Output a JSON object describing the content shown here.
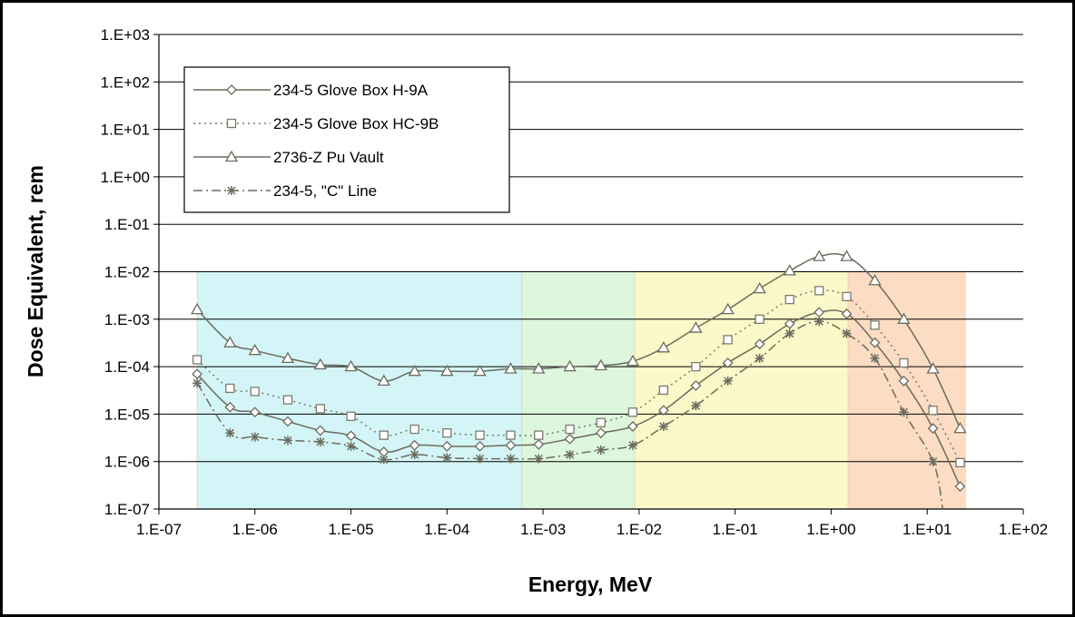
{
  "chart_data": {
    "type": "line",
    "x_scale": "log",
    "y_scale": "log",
    "xlabel": "Energy, MeV",
    "ylabel": "Dose Equivalent, rem",
    "xlim": [
      1e-07,
      100
    ],
    "ylim": [
      1e-07,
      1000
    ],
    "x_tick_labels": [
      "1.E-07",
      "1.E-06",
      "1.E-05",
      "1.E-04",
      "1.E-03",
      "1.E-02",
      "1.E-01",
      "1.E+00",
      "1.E+01",
      "1.E+02"
    ],
    "y_tick_labels": [
      "1.E-07",
      "1.E-06",
      "1.E-05",
      "1.E-04",
      "1.E-03",
      "1.E-02",
      "1.E-01",
      "1.E+00",
      "1.E+01",
      "1.E+02",
      "1.E+03"
    ],
    "grid": "horizontal",
    "legend_position": "top-left",
    "shaded_regions": [
      {
        "x_range": [
          2.5e-07,
          0.0006
        ],
        "y_range": [
          1e-07,
          0.01
        ],
        "color": "#d4f5f7"
      },
      {
        "x_range": [
          0.0006,
          0.009
        ],
        "y_range": [
          1e-07,
          0.01
        ],
        "color": "#ddf7dd"
      },
      {
        "x_range": [
          0.009,
          1.5
        ],
        "y_range": [
          1e-07,
          0.01
        ],
        "color": "#fbf8c9"
      },
      {
        "x_range": [
          1.5,
          25
        ],
        "y_range": [
          1e-07,
          0.01
        ],
        "color": "#fcdcc3"
      }
    ],
    "series": [
      {
        "name": "234-5 Glove Box H-9A",
        "marker": "diamond",
        "line": "solid",
        "color": "#6b6b5e",
        "x": [
          2.5e-07,
          5.5e-07,
          1e-06,
          2.2e-06,
          4.8e-06,
          1e-05,
          2.2e-05,
          4.6e-05,
          0.0001,
          0.00022,
          0.00046,
          0.0009,
          0.0019,
          0.004,
          0.0086,
          0.018,
          0.039,
          0.084,
          0.18,
          0.37,
          0.75,
          1.45,
          2.85,
          5.7,
          11.5,
          22
        ],
        "y": [
          7e-05,
          1.4e-05,
          1.1e-05,
          7e-06,
          4.5e-06,
          3.5e-06,
          1.6e-06,
          2.2e-06,
          2.1e-06,
          2.1e-06,
          2.2e-06,
          2.3e-06,
          3e-06,
          4e-06,
          5.5e-06,
          1.2e-05,
          4e-05,
          0.00012,
          0.0003,
          0.0008,
          0.0014,
          0.0013,
          0.00032,
          5e-05,
          5e-06,
          3e-07
        ]
      },
      {
        "name": "234-5 Glove Box HC-9B",
        "marker": "square",
        "line": "dotted",
        "color": "#7a7a6a",
        "x": [
          2.5e-07,
          5.5e-07,
          1e-06,
          2.2e-06,
          4.8e-06,
          1e-05,
          2.2e-05,
          4.6e-05,
          0.0001,
          0.00022,
          0.00046,
          0.0009,
          0.0019,
          0.004,
          0.0086,
          0.018,
          0.039,
          0.084,
          0.18,
          0.37,
          0.75,
          1.45,
          2.85,
          5.7,
          11.5,
          22
        ],
        "y": [
          0.00014,
          3.5e-05,
          3e-05,
          2e-05,
          1.3e-05,
          9e-06,
          3.6e-06,
          4.8e-06,
          4e-06,
          3.6e-06,
          3.6e-06,
          3.6e-06,
          4.8e-06,
          6.6e-06,
          1.1e-05,
          3.2e-05,
          0.0001,
          0.00037,
          0.001,
          0.0026,
          0.004,
          0.003,
          0.00075,
          0.00012,
          1.2e-05,
          9.5e-07
        ]
      },
      {
        "name": "2736-Z Pu Vault",
        "marker": "triangle",
        "line": "solid",
        "color": "#6b6b5e",
        "x": [
          2.5e-07,
          5.5e-07,
          1e-06,
          2.2e-06,
          4.8e-06,
          1e-05,
          2.2e-05,
          4.6e-05,
          0.0001,
          0.00022,
          0.00046,
          0.0009,
          0.0019,
          0.004,
          0.0086,
          0.018,
          0.039,
          0.084,
          0.18,
          0.37,
          0.75,
          1.45,
          2.85,
          5.7,
          11.5,
          22
        ],
        "y": [
          0.0016,
          0.00032,
          0.00022,
          0.00015,
          0.00011,
          0.0001,
          5e-05,
          8e-05,
          8e-05,
          8e-05,
          9e-05,
          9e-05,
          0.0001,
          0.000105,
          0.00013,
          0.00025,
          0.00065,
          0.0016,
          0.0044,
          0.0105,
          0.021,
          0.021,
          0.0065,
          0.001,
          9e-05,
          5e-06
        ]
      },
      {
        "name": "234-5, \"C\" Line",
        "marker": "asterisk",
        "line": "dashdot",
        "color": "#6b6b5e",
        "x": [
          2.5e-07,
          5.5e-07,
          1e-06,
          2.2e-06,
          4.8e-06,
          1e-05,
          2.2e-05,
          4.6e-05,
          0.0001,
          0.00022,
          0.00046,
          0.0009,
          0.0019,
          0.004,
          0.0086,
          0.018,
          0.039,
          0.084,
          0.18,
          0.37,
          0.75,
          1.45,
          2.85,
          5.7,
          11.5,
          14.5
        ],
        "y": [
          4.5e-05,
          4e-06,
          3.3e-06,
          2.8e-06,
          2.6e-06,
          2.1e-06,
          1.1e-06,
          1.4e-06,
          1.2e-06,
          1.15e-06,
          1.15e-06,
          1.15e-06,
          1.4e-06,
          1.75e-06,
          2.2e-06,
          5.5e-06,
          1.5e-05,
          5e-05,
          0.00015,
          0.0005,
          0.0009,
          0.0005,
          0.00015,
          1.1e-05,
          1e-06,
          1e-07
        ]
      }
    ]
  }
}
